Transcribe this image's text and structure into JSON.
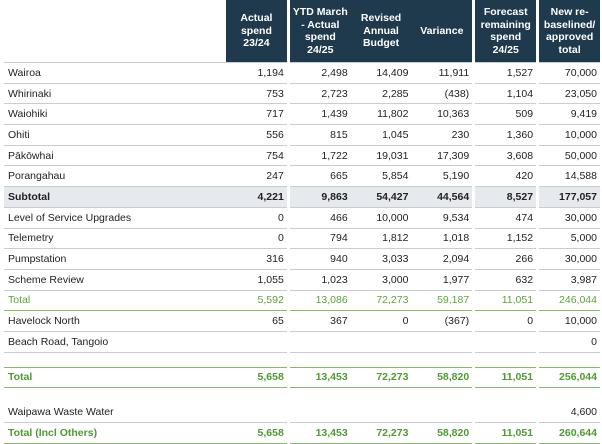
{
  "headers": {
    "actual_spend": "Actual spend 23/24",
    "ytd": "YTD March - Actual spend 24/25",
    "revised_budget": "Revised Annual Budget",
    "variance": "Variance",
    "forecast": "Forecast remaining spend 24/25",
    "new_total": "New re-baselined/ approved total"
  },
  "rows": [
    {
      "label": "Wairoa",
      "actual": "1,194",
      "ytd": "2,498",
      "budget": "14,409",
      "variance": "11,911",
      "forecast": "1,527",
      "total": "70,000"
    },
    {
      "label": "Whirinaki",
      "actual": "753",
      "ytd": "2,723",
      "budget": "2,285",
      "variance": "(438)",
      "forecast": "1,104",
      "total": "23,050"
    },
    {
      "label": "Waiohiki",
      "actual": "717",
      "ytd": "1,439",
      "budget": "11,802",
      "variance": "10,363",
      "forecast": "509",
      "total": "9,419"
    },
    {
      "label": "Ohiti",
      "actual": "556",
      "ytd": "815",
      "budget": "1,045",
      "variance": "230",
      "forecast": "1,360",
      "total": "10,000"
    },
    {
      "label": "Pākōwhai",
      "actual": "754",
      "ytd": "1,722",
      "budget": "19,031",
      "variance": "17,309",
      "forecast": "3,608",
      "total": "50,000"
    },
    {
      "label": "Porangahau",
      "actual": "247",
      "ytd": "665",
      "budget": "5,854",
      "variance": "5,190",
      "forecast": "420",
      "total": "14,588"
    },
    {
      "label": "Subtotal",
      "actual": "4,221",
      "ytd": "9,863",
      "budget": "54,427",
      "variance": "44,564",
      "forecast": "8,527",
      "total": "177,057"
    },
    {
      "label": "Level of Service Upgrades",
      "actual": "0",
      "ytd": "466",
      "budget": "10,000",
      "variance": "9,534",
      "forecast": "474",
      "total": "30,000"
    },
    {
      "label": "Telemetry",
      "actual": "0",
      "ytd": "794",
      "budget": "1,812",
      "variance": "1,018",
      "forecast": "1,152",
      "total": "5,000"
    },
    {
      "label": "Pumpstation",
      "actual": "316",
      "ytd": "940",
      "budget": "3,033",
      "variance": "2,094",
      "forecast": "266",
      "total": "30,000"
    },
    {
      "label": "Scheme Review",
      "actual": "1,055",
      "ytd": "1,023",
      "budget": "3,000",
      "variance": "1,977",
      "forecast": "632",
      "total": "3,987"
    },
    {
      "label": "Total",
      "actual": "5,592",
      "ytd": "13,086",
      "budget": "72,273",
      "variance": "59,187",
      "forecast": "11,051",
      "total": "246,044"
    },
    {
      "label": "Havelock North",
      "actual": "65",
      "ytd": "367",
      "budget": "0",
      "variance": "(367)",
      "forecast": "0",
      "total": "10,000"
    },
    {
      "label": "Beach Road, Tangoio",
      "actual": "",
      "ytd": "",
      "budget": "",
      "variance": "",
      "forecast": "",
      "total": "0"
    },
    {
      "label": "Total",
      "actual": "5,658",
      "ytd": "13,453",
      "budget": "72,273",
      "variance": "58,820",
      "forecast": "11,051",
      "total": "256,044"
    },
    {
      "label": "Waipawa Waste Water",
      "actual": "",
      "ytd": "",
      "budget": "",
      "variance": "",
      "forecast": "",
      "total": "4,600"
    },
    {
      "label": "Total (Incl Others)",
      "actual": "5,658",
      "ytd": "13,453",
      "budget": "72,273",
      "variance": "58,820",
      "forecast": "11,051",
      "total": "260,644"
    }
  ]
}
